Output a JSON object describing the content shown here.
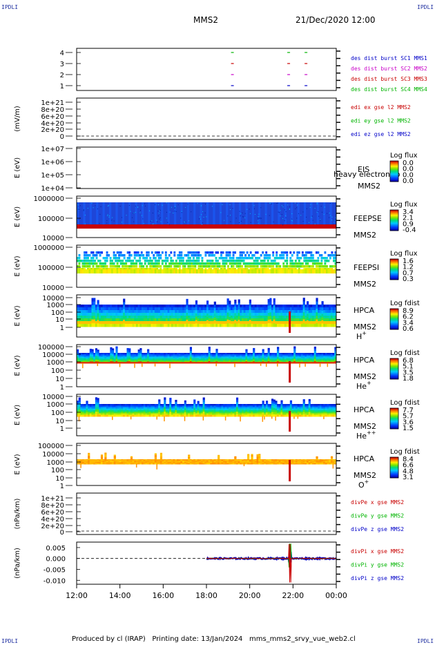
{
  "corners": {
    "tl": "IPDLI",
    "tr": "IPDLI",
    "bl": "IPDLI",
    "br": "IPDLI"
  },
  "header": {
    "spacecraft": "MMS2",
    "datetime": "21/Dec/2020 12:00"
  },
  "footer": {
    "produced_by": "Produced by cl (IRAP)",
    "printing_date": "Printing date: 13/Jan/2024",
    "script": "mms_mms2_srvy_vue_web2.cl"
  },
  "chart_data": {
    "type": "multi-panel time series",
    "x_axis": {
      "range": [
        "12:00",
        "00:00"
      ],
      "ticks": [
        "12:00",
        "14:00",
        "16:00",
        "18:00",
        "20:00",
        "22:00",
        "00:00"
      ]
    },
    "panels": [
      {
        "id": "burst",
        "type": "scatter",
        "ylabel": "",
        "yticks": [
          "4",
          "3",
          "2",
          "1"
        ],
        "legend": [
          {
            "text": "des dist burst SC1 MMS1",
            "color": "#0000c8"
          },
          {
            "text": "des dist burst SC2 MMS2",
            "color": "#c800c8"
          },
          {
            "text": "des dist burst SC3 MMS3",
            "color": "#c80000"
          },
          {
            "text": "des dist burst SC4 MMS4",
            "color": "#00b400"
          }
        ],
        "marks": [
          {
            "sc": 4,
            "t": 19.2
          },
          {
            "sc": 3,
            "t": 19.2
          },
          {
            "sc": 2,
            "t": 19.2
          },
          {
            "sc": 1,
            "t": 19.2
          },
          {
            "sc": 4,
            "t": 21.8
          },
          {
            "sc": 3,
            "t": 21.8
          },
          {
            "sc": 2,
            "t": 21.8
          },
          {
            "sc": 1,
            "t": 21.8
          },
          {
            "sc": 4,
            "t": 22.6
          },
          {
            "sc": 3,
            "t": 22.6
          },
          {
            "sc": 2,
            "t": 22.6
          },
          {
            "sc": 1,
            "t": 22.6
          }
        ]
      },
      {
        "id": "edi",
        "type": "line",
        "ylabel": "(mV/m)",
        "yticks": [
          "1e+21",
          "8e+20",
          "6e+20",
          "4e+20",
          "2e+20",
          "0"
        ],
        "legend": [
          {
            "text": "edi ex gse l2 MMS2",
            "color": "#c80000"
          },
          {
            "text": "edi ey gse l2 MMS2",
            "color": "#00b400"
          },
          {
            "text": "edi ez gse l2 MMS2",
            "color": "#0000c8"
          }
        ]
      },
      {
        "id": "eis",
        "type": "heatmap",
        "ylabel": "E (eV)",
        "yticks": [
          "1e+07",
          "1e+06",
          "1e+05",
          "1e+04"
        ],
        "inst": [
          "EIS",
          "MMS2"
        ],
        "overlay": "heavy electron to",
        "cb_title": "Log flux",
        "cb_ticks": [
          "0.0",
          "0.0",
          "0.0",
          "0.0"
        ]
      },
      {
        "id": "feepse",
        "type": "heatmap",
        "ylabel": "E (eV)",
        "yticks": [
          "1000000",
          "100000",
          "10000"
        ],
        "inst": [
          "FEEPSE",
          "MMS2"
        ],
        "cb_title": "Log flux",
        "cb_ticks": [
          "3.4",
          "2.1",
          "0.9",
          "-0.4"
        ]
      },
      {
        "id": "feepsi",
        "type": "heatmap",
        "ylabel": "E (eV)",
        "yticks": [
          "1000000",
          "100000",
          "10000"
        ],
        "inst": [
          "FEEPSI",
          "MMS2"
        ],
        "cb_title": "Log flux",
        "cb_ticks": [
          "1.6",
          "1.2",
          "0.7",
          "0.3"
        ]
      },
      {
        "id": "hpca_h",
        "type": "heatmap",
        "ylabel": "E (eV)",
        "yticks": [
          "10000",
          "1000",
          "100",
          "10",
          "1"
        ],
        "inst": [
          "HPCA",
          "MMS2"
        ],
        "species": "H",
        "charge": "+",
        "cb_title": "Log fdist",
        "cb_ticks": [
          "8.9",
          "6.2",
          "3.4",
          "0.6"
        ]
      },
      {
        "id": "hpca_he",
        "type": "heatmap",
        "ylabel": "E (eV)",
        "yticks": [
          "100000",
          "10000",
          "1000",
          "100",
          "10",
          "1"
        ],
        "inst": [
          "HPCA",
          "MMS2"
        ],
        "species": "He",
        "charge": "+",
        "cb_title": "Log fdist",
        "cb_ticks": [
          "6.8",
          "5.1",
          "3.5",
          "1.8"
        ]
      },
      {
        "id": "hpca_hepp",
        "type": "heatmap",
        "ylabel": "E (eV)",
        "yticks": [
          "10000",
          "1000",
          "100",
          "10",
          "1"
        ],
        "inst": [
          "HPCA",
          "MMS2"
        ],
        "species": "He",
        "charge": "++",
        "cb_title": "Log fdist",
        "cb_ticks": [
          "7.7",
          "5.7",
          "3.6",
          "1.5"
        ]
      },
      {
        "id": "hpca_o",
        "type": "heatmap",
        "ylabel": "E (eV)",
        "yticks": [
          "100000",
          "10000",
          "1000",
          "100",
          "10",
          "1"
        ],
        "inst": [
          "HPCA",
          "MMS2"
        ],
        "species": "O",
        "charge": "+",
        "cb_title": "Log fdist",
        "cb_ticks": [
          "8.4",
          "6.6",
          "4.8",
          "3.1"
        ]
      },
      {
        "id": "divpe",
        "type": "line",
        "ylabel": "(nPa/km)",
        "yticks": [
          "1e+21",
          "8e+20",
          "6e+20",
          "4e+20",
          "2e+20",
          "0"
        ],
        "legend": [
          {
            "text": "divPe x gse MMS2",
            "color": "#c80000"
          },
          {
            "text": "divPe y gse MMS2",
            "color": "#00b400"
          },
          {
            "text": "divPe z gse MMS2",
            "color": "#0000c8"
          }
        ]
      },
      {
        "id": "divpi",
        "type": "line",
        "ylabel": "(nPa/km)",
        "yticks": [
          "0.005",
          "0.000",
          "-0.005",
          "-0.010"
        ],
        "ytick_values": [
          0.005,
          0.0,
          -0.005,
          -0.01
        ],
        "ylim": [
          -0.0118,
          0.0075
        ],
        "data_start_hour": 18.0,
        "spike_hour": 21.85,
        "legend": [
          {
            "text": "divPi x gse MMS2",
            "color": "#c80000"
          },
          {
            "text": "divPi y gse MMS2",
            "color": "#00b400"
          },
          {
            "text": "divPi z gse MMS2",
            "color": "#0000c8"
          }
        ]
      }
    ]
  }
}
